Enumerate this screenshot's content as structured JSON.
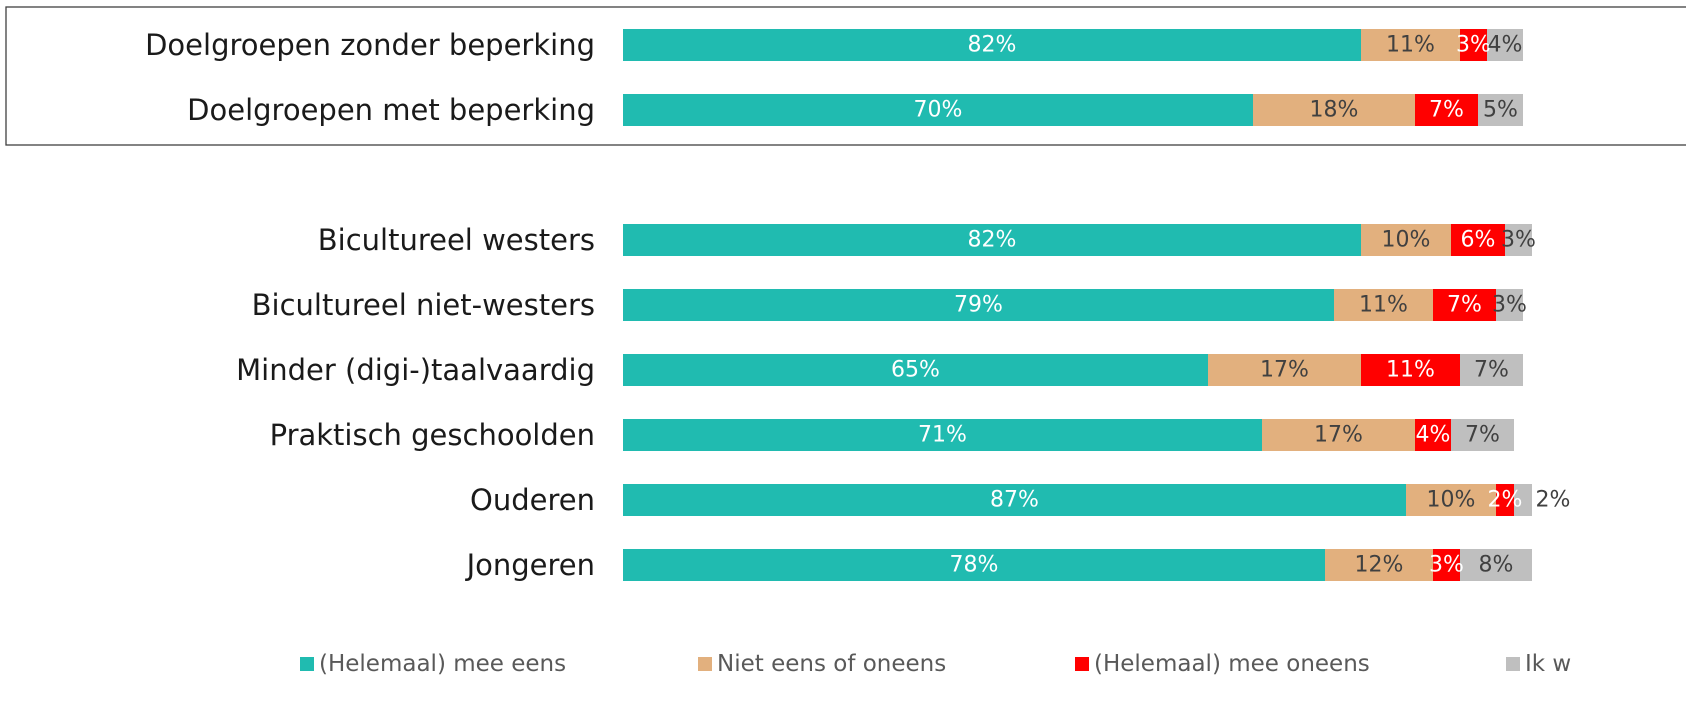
{
  "chart_data": {
    "type": "bar",
    "orientation": "horizontal",
    "stacked": "percent",
    "categories": [
      "Doelgroepen zonder beperking",
      "Doelgroepen met beperking",
      "Bicultureel westers",
      "Bicultureel niet-westers",
      "Minder (digi-)taalvaardig",
      "Praktisch geschoolden",
      "Ouderen",
      "Jongeren"
    ],
    "series": [
      {
        "name": "(Helemaal) mee eens",
        "color": "#20BBB0",
        "text_color": "#ffffff",
        "values": [
          82,
          70,
          82,
          79,
          65,
          71,
          87,
          78
        ],
        "labels": [
          "82%",
          "70%",
          "82%",
          "79%",
          "65%",
          "71%",
          "87%",
          "78%"
        ]
      },
      {
        "name": "Niet eens of oneens",
        "color": "#E2B07E",
        "text_color": "#404040",
        "values": [
          11,
          18,
          10,
          11,
          17,
          17,
          10,
          12
        ],
        "labels": [
          "11%",
          "18%",
          "10%",
          "11%",
          "17%",
          "17%",
          "10%",
          "12%"
        ]
      },
      {
        "name": "(Helemaal) mee oneens",
        "color": "#FF0000",
        "text_color": "#ffffff",
        "values": [
          3,
          7,
          6,
          7,
          11,
          4,
          2,
          3
        ],
        "labels": [
          "3%",
          "7%",
          "6%",
          "7%",
          "11%",
          "4%",
          "2%",
          "3%"
        ]
      },
      {
        "name": "Ik w",
        "color": "#BFBFBF",
        "text_color": "#404040",
        "values": [
          4,
          5,
          3,
          3,
          7,
          7,
          2,
          8
        ],
        "labels": [
          "4%",
          "5%",
          "3%",
          "3%",
          "7%",
          "7%",
          "2%",
          "8%"
        ]
      }
    ],
    "xlim": [
      0,
      100
    ],
    "grid": false,
    "legend_position": "bottom",
    "highlight_box_groups": [
      "Doelgroepen zonder beperking",
      "Doelgroepen met beperking"
    ]
  }
}
